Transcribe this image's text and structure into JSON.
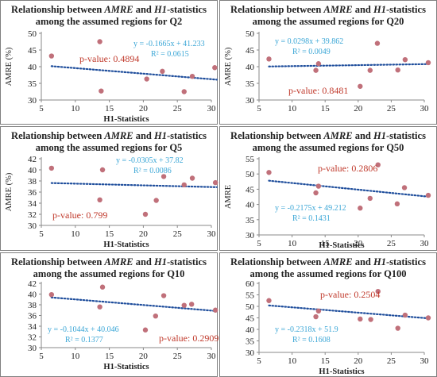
{
  "chart_data": [
    {
      "type": "scatter",
      "title_prefix": "Relationship between ",
      "title_var1": "AMRE",
      "title_mid": " and ",
      "title_var2": "H1",
      "title_suffix": "-statistics",
      "title_line2": "among the assumed regions for Q2",
      "xlabel": "H1-Statistics",
      "ylabel": "AMRE (%)",
      "xlim": [
        5,
        30
      ],
      "xticks": [
        5,
        10,
        15,
        20,
        25,
        30
      ],
      "ylim": [
        30,
        50
      ],
      "yticks": [
        30,
        35,
        40,
        45,
        50
      ],
      "points": [
        [
          6.5,
          43.2
        ],
        [
          13.6,
          47.5
        ],
        [
          13.8,
          32.7
        ],
        [
          20.5,
          36.3
        ],
        [
          22.8,
          38.6
        ],
        [
          26.0,
          32.5
        ],
        [
          27.2,
          37.1
        ],
        [
          30.5,
          39.7
        ]
      ],
      "trend": {
        "slope": -0.1665,
        "intercept": 41.233
      },
      "equation": "y = -0.1665x + 41.233",
      "r2": "R² = 0.0615",
      "pvalue": "p-value: 0.4894"
    },
    {
      "type": "scatter",
      "title_prefix": "Relationship between ",
      "title_var1": "AMRE",
      "title_mid": " and ",
      "title_var2": "H1",
      "title_suffix": "-statistics",
      "title_line2": "among the assumed regions for Q20",
      "xlabel": "",
      "ylabel": "AMRE (%)",
      "xlim": [
        5,
        30
      ],
      "xticks": [
        5,
        10,
        15,
        20,
        25,
        30
      ],
      "ylim": [
        30,
        50
      ],
      "yticks": [
        30,
        35,
        40,
        45,
        50
      ],
      "points": [
        [
          6.5,
          42.3
        ],
        [
          13.6,
          38.9
        ],
        [
          14.0,
          40.9
        ],
        [
          20.3,
          34.1
        ],
        [
          21.8,
          38.9
        ],
        [
          22.9,
          47.0
        ],
        [
          26.0,
          39.0
        ],
        [
          27.1,
          42.1
        ],
        [
          30.6,
          41.2
        ]
      ],
      "trend": {
        "slope": 0.0298,
        "intercept": 39.862
      },
      "equation": "y = 0.0298x + 39.862",
      "r2": "R² = 0.0049",
      "pvalue": "p-value: 0.8481"
    },
    {
      "type": "scatter",
      "title_prefix": "Relationship between ",
      "title_var1": "AMRE",
      "title_mid": " and ",
      "title_var2": "H1",
      "title_suffix": "-statistics",
      "title_line2": "among the assumed regions for Q5",
      "xlabel": "H1-Statistics",
      "ylabel": "AMRE (%)",
      "xlim": [
        5,
        30
      ],
      "xticks": [
        5,
        10,
        15,
        20,
        25,
        30
      ],
      "ylim": [
        30,
        42
      ],
      "yticks": [
        30,
        32,
        34,
        36,
        38,
        40,
        42
      ],
      "points": [
        [
          6.5,
          40.3
        ],
        [
          13.6,
          34.6
        ],
        [
          14.0,
          40.0
        ],
        [
          20.3,
          32.0
        ],
        [
          21.9,
          34.5
        ],
        [
          23.0,
          38.8
        ],
        [
          26.0,
          37.3
        ],
        [
          27.2,
          38.5
        ],
        [
          30.6,
          37.7
        ]
      ],
      "trend": {
        "slope": -0.0305,
        "intercept": 37.82
      },
      "equation": "y = -0.0305x + 37.82",
      "r2": "R² = 0.0086",
      "pvalue": "p-value: 0.799"
    },
    {
      "type": "scatter",
      "title_prefix": "Relationship between ",
      "title_var1": "AMRE",
      "title_mid": " and ",
      "title_var2": "H1",
      "title_suffix": "-statistics",
      "title_line2": "among the assumed regions for Q50",
      "xlabel": "H1-Statistics",
      "ylabel": "AMRE",
      "xlim": [
        5,
        30
      ],
      "xticks": [
        5,
        10,
        15,
        20,
        25,
        30
      ],
      "ylim": [
        30,
        55
      ],
      "yticks": [
        30,
        35,
        40,
        45,
        50,
        55
      ],
      "points": [
        [
          6.5,
          50.5
        ],
        [
          13.6,
          43.8
        ],
        [
          14.0,
          46.0
        ],
        [
          20.3,
          38.8
        ],
        [
          21.8,
          42.0
        ],
        [
          23.0,
          53.0
        ],
        [
          25.9,
          40.2
        ],
        [
          27.0,
          45.5
        ],
        [
          30.6,
          43.0
        ]
      ],
      "trend": {
        "slope": -0.2175,
        "intercept": 49.212
      },
      "equation": "y = -0.2175x + 49.212",
      "r2": "R² = 0.1431",
      "pvalue": "p-value: 0.2806"
    },
    {
      "type": "scatter",
      "title_prefix": "Relationship between ",
      "title_var1": "AMRE",
      "title_mid": " and ",
      "title_var2": "H1",
      "title_suffix": "-statistics",
      "title_line2": "among the assumed regions for Q10",
      "xlabel": "H1-Statistics",
      "ylabel": "",
      "xlim": [
        5,
        30
      ],
      "xticks": [
        5,
        10,
        15,
        20,
        25,
        30
      ],
      "ylim": [
        30,
        42
      ],
      "yticks": [
        30,
        32,
        34,
        36,
        38,
        40,
        42
      ],
      "points": [
        [
          6.5,
          39.9
        ],
        [
          13.6,
          37.6
        ],
        [
          14.0,
          41.3
        ],
        [
          20.3,
          33.3
        ],
        [
          21.8,
          35.9
        ],
        [
          23.0,
          39.7
        ],
        [
          26.0,
          37.9
        ],
        [
          27.1,
          38.1
        ],
        [
          30.6,
          37.0
        ]
      ],
      "trend": {
        "slope": -0.1044,
        "intercept": 40.046
      },
      "equation": "y = -0.1044x + 40.046",
      "r2": "R² = 0.1377",
      "pvalue": "p-value: 0.2909"
    },
    {
      "type": "scatter",
      "title_prefix": "Relationship between ",
      "title_var1": "AMRE",
      "title_mid": " and ",
      "title_var2": "H1",
      "title_suffix": "-statistics",
      "title_line2": "among the assumed regions for Q100",
      "xlabel": "H1-Statistics",
      "ylabel": "",
      "xlim": [
        5,
        30
      ],
      "xticks": [
        5,
        10,
        15,
        20,
        25,
        30
      ],
      "ylim": [
        30,
        60
      ],
      "yticks": [
        30,
        35,
        40,
        45,
        50,
        55,
        60
      ],
      "points": [
        [
          6.5,
          52.5
        ],
        [
          13.6,
          45.5
        ],
        [
          14.0,
          48.0
        ],
        [
          20.3,
          44.5
        ],
        [
          21.9,
          44.3
        ],
        [
          23.0,
          56.5
        ],
        [
          26.0,
          40.5
        ],
        [
          27.1,
          46.2
        ],
        [
          30.6,
          45.0
        ]
      ],
      "trend": {
        "slope": -0.2318,
        "intercept": 51.9
      },
      "equation": "y = -0.2318x + 51.9",
      "r2": "R² = 0.1608",
      "pvalue": "p-value: 0.2504"
    }
  ],
  "colors": {
    "point": "#c0707a",
    "trend": "#1f4e9c",
    "equation": "#3aa6d6",
    "pvalue": "#c0392b",
    "frame": "#7f7f7f",
    "axis": "#888888",
    "text": "#222222"
  }
}
